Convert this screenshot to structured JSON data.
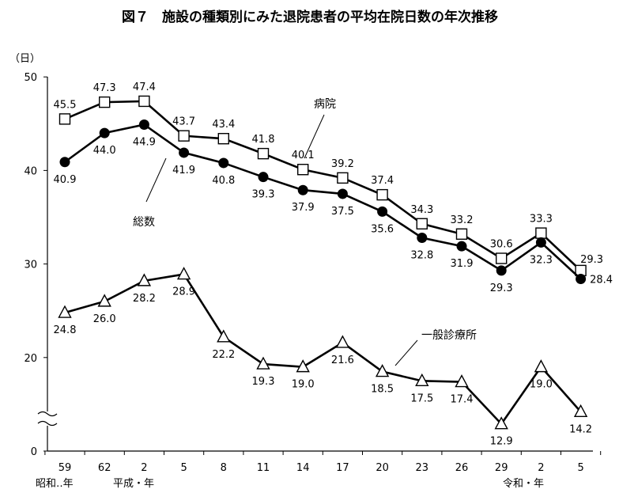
{
  "chart_data": {
    "type": "line",
    "title": "図７　施設の種類別にみた退院患者の平均在院日数の年次推移",
    "y_unit": "（日）",
    "ylim": [
      0,
      50
    ],
    "y_ticks": [
      "0",
      "20",
      "30",
      "40",
      "50"
    ],
    "y_axis_break": true,
    "categories": [
      "59",
      "62",
      "2",
      "5",
      "8",
      "11",
      "14",
      "17",
      "20",
      "23",
      "26",
      "29",
      "2",
      "5"
    ],
    "era_labels": [
      "昭和‥年",
      "平成・年",
      "令和・年"
    ],
    "series": [
      {
        "name": "病院",
        "marker": "square-open",
        "values": [
          45.5,
          47.3,
          47.4,
          43.7,
          43.4,
          41.8,
          40.1,
          39.2,
          37.4,
          34.3,
          33.2,
          30.6,
          33.3,
          29.3
        ],
        "labels": [
          "45.5",
          "47.3",
          "47.4",
          "43.7",
          "43.4",
          "41.8",
          "40.1",
          "39.2",
          "37.4",
          "34.3",
          "33.2",
          "30.6",
          "33.3",
          "29.3"
        ]
      },
      {
        "name": "総数",
        "marker": "circle-filled",
        "values": [
          40.9,
          44.0,
          44.9,
          41.9,
          40.8,
          39.3,
          37.9,
          37.5,
          35.6,
          32.8,
          31.9,
          29.3,
          32.3,
          28.4
        ],
        "labels": [
          "40.9",
          "44.0",
          "44.9",
          "41.9",
          "40.8",
          "39.3",
          "37.9",
          "37.5",
          "35.6",
          "32.8",
          "31.9",
          "29.3",
          "32.3",
          "28.4"
        ]
      },
      {
        "name": "一般診療所",
        "marker": "triangle-open",
        "values": [
          24.8,
          26.0,
          28.2,
          28.9,
          22.2,
          19.3,
          19.0,
          21.6,
          18.5,
          17.5,
          17.4,
          12.9,
          19.0,
          14.2
        ],
        "labels": [
          "24.8",
          "26.0",
          "28.2",
          "28.9",
          "22.2",
          "19.3",
          "19.0",
          "21.6",
          "18.5",
          "17.5",
          "17.4",
          "12.9",
          "19.0",
          "14.2"
        ]
      }
    ],
    "grid": false,
    "legend": "inline-callouts"
  }
}
